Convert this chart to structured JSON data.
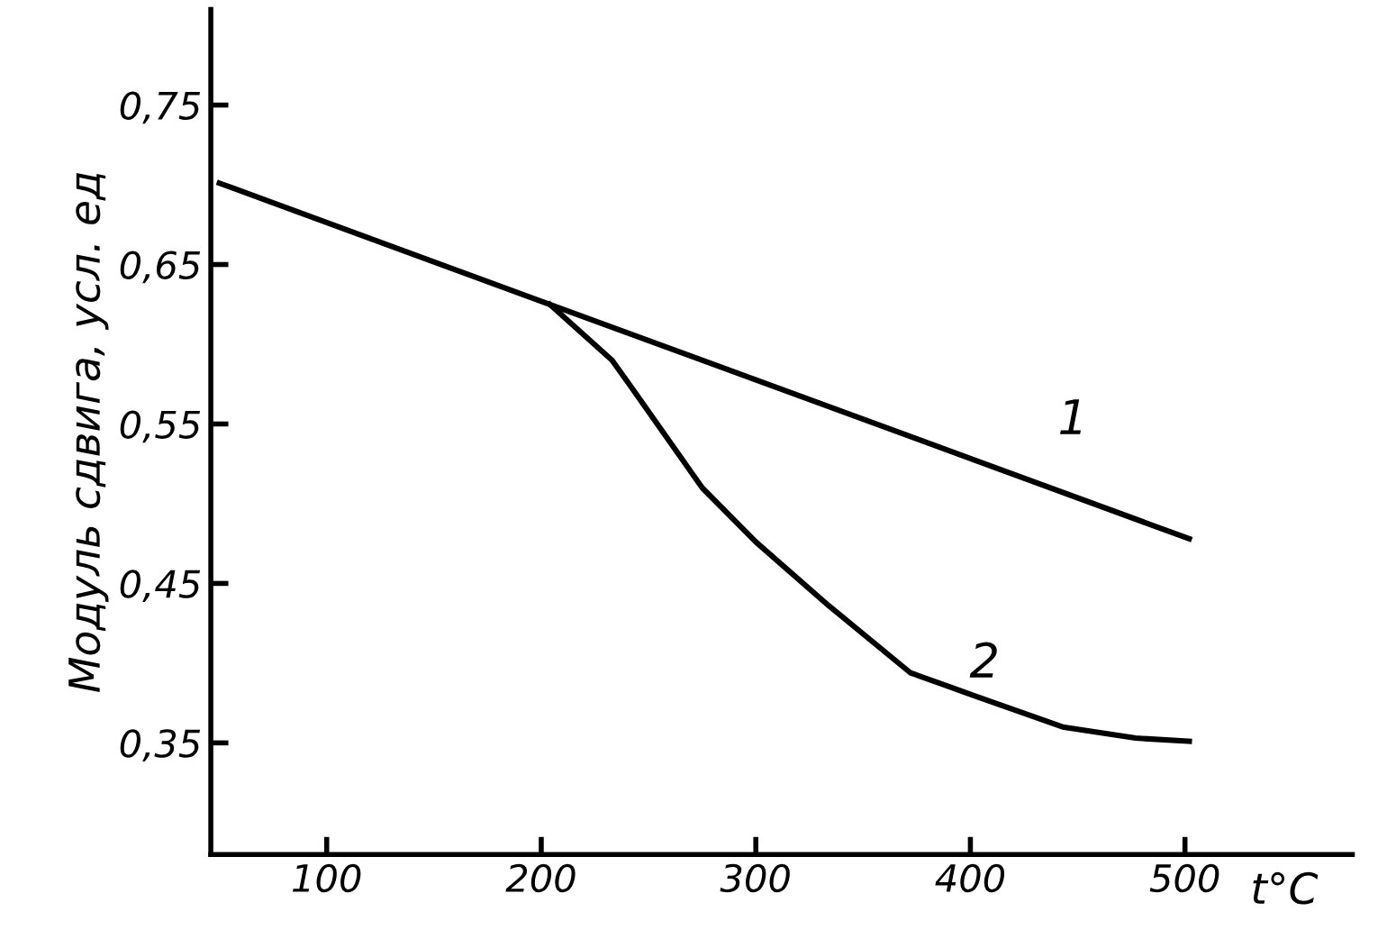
{
  "chart_data": {
    "type": "line",
    "xlabel": "t°C",
    "ylabel": "Модуль сдвига, усл. ед",
    "xlim": [
      46,
      578
    ],
    "ylim": [
      0.28,
      0.81
    ],
    "xticks": [
      100,
      200,
      300,
      400,
      500
    ],
    "yticks": [
      {
        "value": 0.35,
        "label": "0,35"
      },
      {
        "value": 0.45,
        "label": "0,45"
      },
      {
        "value": 0.55,
        "label": "0,55"
      },
      {
        "value": 0.65,
        "label": "0,65"
      },
      {
        "value": 0.75,
        "label": "0,75"
      }
    ],
    "series": [
      {
        "name": "1",
        "color": "#000000",
        "x": [
          50,
          204,
          502
        ],
        "values": [
          0.701,
          0.625,
          0.478
        ]
      },
      {
        "name": "2",
        "color": "#000000",
        "x": [
          204,
          233,
          242,
          275,
          300,
          334,
          372,
          401,
          443,
          477,
          502
        ],
        "values": [
          0.625,
          0.59,
          0.573,
          0.51,
          0.476,
          0.436,
          0.394,
          0.38,
          0.36,
          0.353,
          0.351
        ]
      }
    ],
    "grid": false,
    "legend": false,
    "marker": "none",
    "line_style": "solid"
  }
}
